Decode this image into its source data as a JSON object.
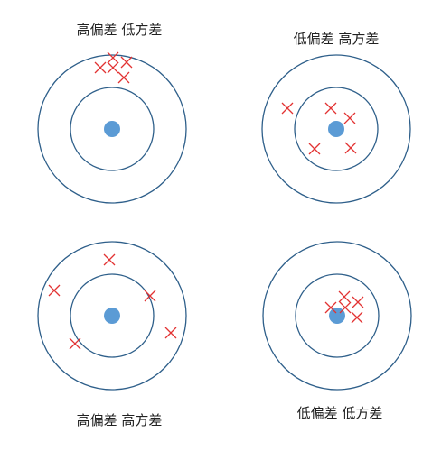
{
  "colors": {
    "ring": "#2e5f8a",
    "center": "#5b9bd5",
    "marker": "#e23333"
  },
  "panels": [
    {
      "caption": "高偏差 低方差",
      "bias": "high",
      "variance": "low"
    },
    {
      "caption": "低偏差 高方差",
      "bias": "low",
      "variance": "high"
    },
    {
      "caption": "高偏差 高方差",
      "bias": "high",
      "variance": "high"
    },
    {
      "caption": "低偏差 低方差",
      "bias": "low",
      "variance": "low"
    }
  ]
}
